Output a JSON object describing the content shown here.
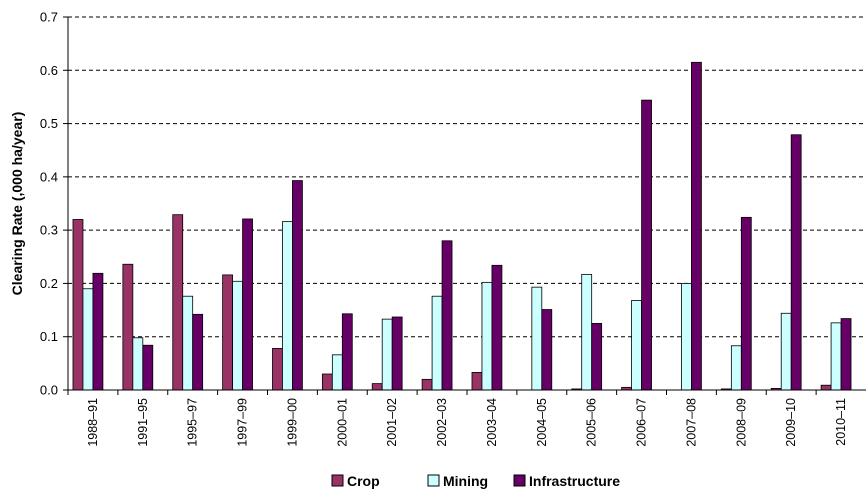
{
  "chart_data": {
    "type": "bar",
    "ylabel": "Clearing Rate (,000 ha/year)",
    "ylim": [
      0,
      0.7
    ],
    "yticks": [
      "0.0",
      "0.1",
      "0.2",
      "0.3",
      "0.4",
      "0.5",
      "0.6",
      "0.7"
    ],
    "grid": true,
    "legend_position": "bottom",
    "categories": [
      "1988–91",
      "1991–95",
      "1995–97",
      "1997–99",
      "1999–00",
      "2000–01",
      "2001–02",
      "2002–03",
      "2003–04",
      "2004–05",
      "2005–06",
      "2006–07",
      "2007–08",
      "2008–09",
      "2009–10",
      "2010–11"
    ],
    "series": [
      {
        "name": "Crop",
        "color": "#993366",
        "values": [
          0.32,
          0.236,
          0.329,
          0.216,
          0.078,
          0.03,
          0.012,
          0.02,
          0.033,
          0.0,
          0.002,
          0.005,
          0.0,
          0.002,
          0.003,
          0.009
        ]
      },
      {
        "name": "Mining",
        "color": "#ccffff",
        "values": [
          0.19,
          0.098,
          0.176,
          0.204,
          0.316,
          0.066,
          0.133,
          0.176,
          0.202,
          0.193,
          0.217,
          0.168,
          0.2,
          0.083,
          0.144,
          0.126
        ]
      },
      {
        "name": "Infrastructure",
        "color": "#660066",
        "values": [
          0.219,
          0.084,
          0.142,
          0.321,
          0.393,
          0.143,
          0.137,
          0.28,
          0.234,
          0.151,
          0.125,
          0.544,
          0.615,
          0.324,
          0.479,
          0.134
        ]
      }
    ]
  }
}
